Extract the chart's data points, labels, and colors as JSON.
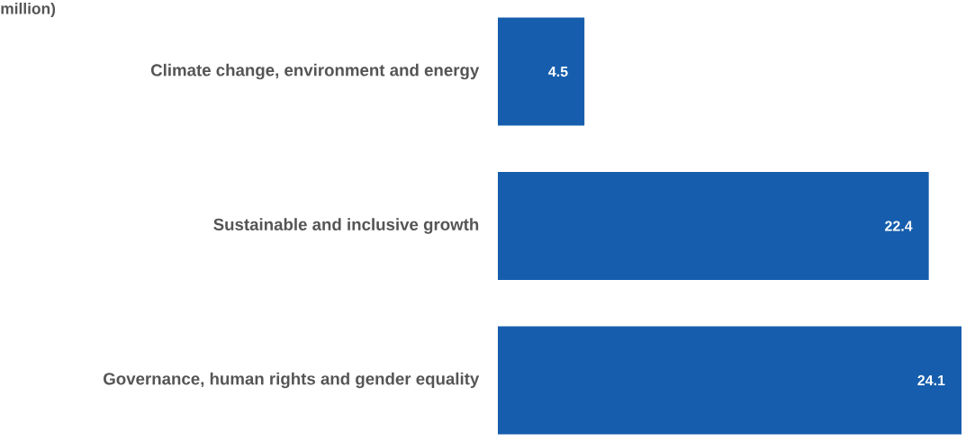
{
  "chart_data": {
    "type": "bar",
    "orientation": "horizontal",
    "title": "million)",
    "categories": [
      "Climate change, environment and energy",
      "Sustainable and inclusive growth",
      "Governance, human rights and gender equality"
    ],
    "values": [
      4.5,
      22.4,
      24.1
    ],
    "color": "#165ead",
    "data_labels": true,
    "tick_labels": "y"
  }
}
